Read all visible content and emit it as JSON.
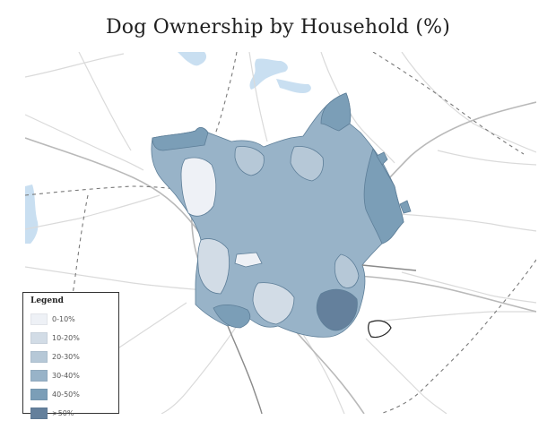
{
  "title": "Dog Ownership by Household (%)",
  "legend": {
    "title": "Legend",
    "items": [
      {
        "label": "0-10%",
        "color": "#eef1f6"
      },
      {
        "label": "10-20%",
        "color": "#d2dce6"
      },
      {
        "label": "20-30%",
        "color": "#b6c8d7"
      },
      {
        "label": "30-40%",
        "color": "#98b3c8"
      },
      {
        "label": "40-50%",
        "color": "#7b9eb7"
      },
      {
        "label": ">50%",
        "color": "#64809c"
      }
    ]
  },
  "colors": {
    "roads": "#dadada",
    "highways": "#b9b9b9",
    "county_line": "#7a7a7a",
    "water": "#c9dff1",
    "region_outline": "#5d7e98"
  }
}
